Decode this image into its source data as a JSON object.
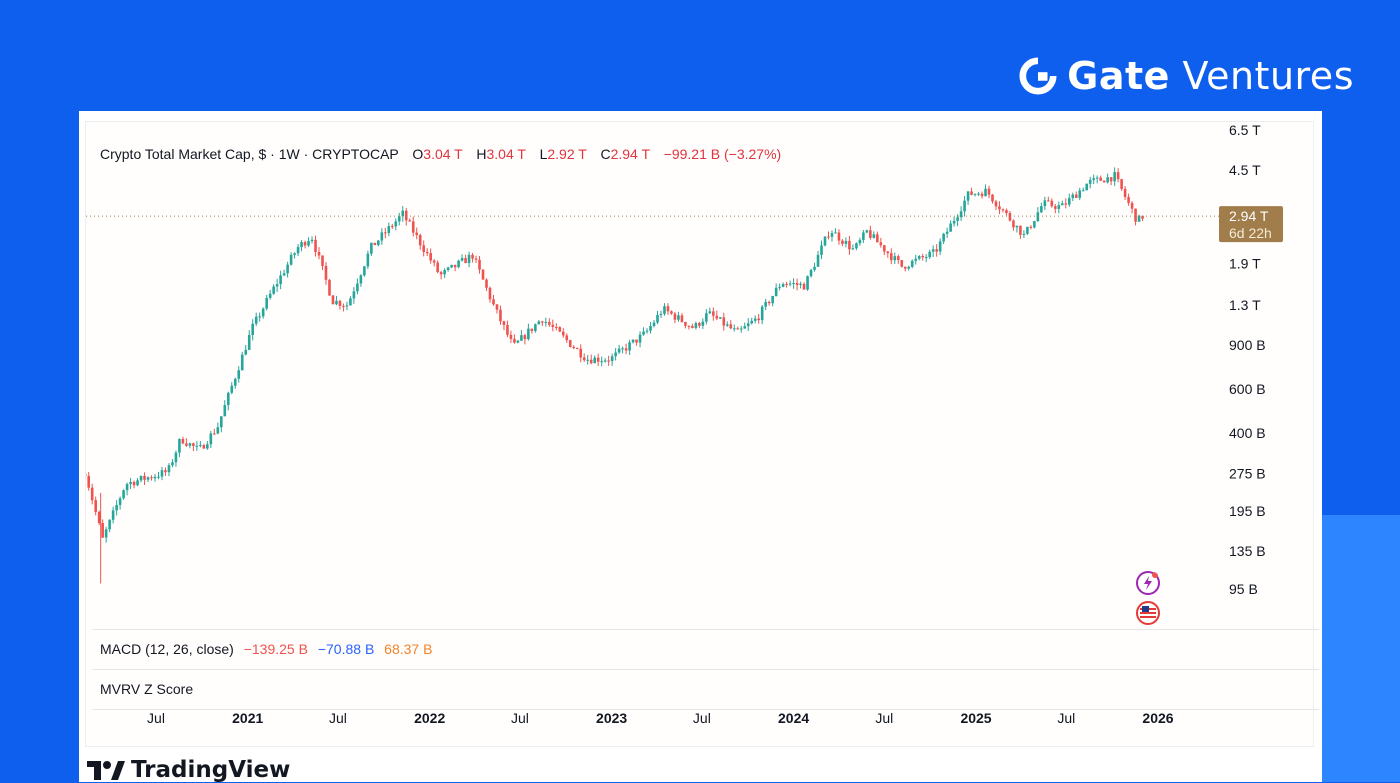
{
  "brand": {
    "bold": "Gate",
    "light": "Ventures",
    "icon": "gate-logo-icon"
  },
  "legend": {
    "title": "Crypto Total Market Cap, $ · 1W · CRYPTOCAP",
    "o_label": "O",
    "o_val": "3.04 T",
    "h_label": "H",
    "h_val": "3.04 T",
    "l_label": "L",
    "l_val": "2.92 T",
    "c_label": "C",
    "c_val": "2.94 T",
    "change": "−99.21 B (−3.27%)"
  },
  "macd": {
    "label": "MACD (12, 26, close)",
    "v1": "−139.25 B",
    "v2": "−70.88 B",
    "v3": "68.37 B"
  },
  "mvrv": {
    "label": "MVRV Z Score"
  },
  "footer": {
    "logo_text": "TradingView",
    "icon": "tradingview-logo-icon"
  },
  "colors": {
    "up": "#26a69a",
    "down": "#ef5350",
    "background": "#0f5fef",
    "price_tag": "#a17d4b"
  },
  "chart_data": {
    "type": "candlestick",
    "title": "Crypto Total Market Cap, $ · 1W · CRYPTOCAP",
    "y_scale": "log",
    "y_ticks": [
      {
        "label": "6.5 T",
        "value": 6500000000000.0
      },
      {
        "label": "4.5 T",
        "value": 4500000000000.0
      },
      {
        "label": "1.9 T",
        "value": 1900000000000.0
      },
      {
        "label": "1.3 T",
        "value": 1300000000000.0
      },
      {
        "label": "900 B",
        "value": 900000000000.0
      },
      {
        "label": "600 B",
        "value": 600000000000.0
      },
      {
        "label": "400 B",
        "value": 400000000000.0
      },
      {
        "label": "275 B",
        "value": 275000000000.0
      },
      {
        "label": "195 B",
        "value": 195000000000.0
      },
      {
        "label": "135 B",
        "value": 135000000000.0
      },
      {
        "label": "95 B",
        "value": 95000000000.0
      }
    ],
    "x_ticks": [
      {
        "label": "Jul",
        "date": "2020-07-01",
        "bold": false
      },
      {
        "label": "2021",
        "date": "2021-01-01",
        "bold": true
      },
      {
        "label": "Jul",
        "date": "2021-07-01",
        "bold": false
      },
      {
        "label": "2022",
        "date": "2022-01-01",
        "bold": true
      },
      {
        "label": "Jul",
        "date": "2022-07-01",
        "bold": false
      },
      {
        "label": "2023",
        "date": "2023-01-01",
        "bold": true
      },
      {
        "label": "Jul",
        "date": "2023-07-01",
        "bold": false
      },
      {
        "label": "2024",
        "date": "2024-01-01",
        "bold": true
      },
      {
        "label": "Jul",
        "date": "2024-07-01",
        "bold": false
      },
      {
        "label": "2025",
        "date": "2025-01-01",
        "bold": true
      },
      {
        "label": "Jul",
        "date": "2025-07-01",
        "bold": false
      },
      {
        "label": "2026",
        "date": "2026-01-01",
        "bold": true
      }
    ],
    "last_price": {
      "label": "2.94 T",
      "countdown": "6d 22h",
      "value": 2940000000000.0
    },
    "anchors": [
      {
        "date": "2020-02-10",
        "close": 280000000000.0
      },
      {
        "date": "2020-03-16",
        "close": 150000000000.0
      },
      {
        "date": "2020-05-01",
        "close": 250000000000.0
      },
      {
        "date": "2020-07-25",
        "close": 280000000000.0
      },
      {
        "date": "2020-08-20",
        "close": 380000000000.0
      },
      {
        "date": "2020-09-25",
        "close": 340000000000.0
      },
      {
        "date": "2020-11-01",
        "close": 420000000000.0
      },
      {
        "date": "2021-01-10",
        "close": 1050000000000.0
      },
      {
        "date": "2021-02-21",
        "close": 1500000000000.0
      },
      {
        "date": "2021-04-11",
        "close": 2200000000000.0
      },
      {
        "date": "2021-05-09",
        "close": 2450000000000.0
      },
      {
        "date": "2021-06-20",
        "close": 1350000000000.0
      },
      {
        "date": "2021-07-20",
        "close": 1300000000000.0
      },
      {
        "date": "2021-09-05",
        "close": 2200000000000.0
      },
      {
        "date": "2021-11-08",
        "close": 3000000000000.0
      },
      {
        "date": "2022-01-22",
        "close": 1700000000000.0
      },
      {
        "date": "2022-03-28",
        "close": 2050000000000.0
      },
      {
        "date": "2022-05-12",
        "close": 1250000000000.0
      },
      {
        "date": "2022-06-18",
        "close": 880000000000.0
      },
      {
        "date": "2022-08-14",
        "close": 1150000000000.0
      },
      {
        "date": "2022-11-13",
        "close": 790000000000.0
      },
      {
        "date": "2022-12-30",
        "close": 790000000000.0
      },
      {
        "date": "2023-03-10",
        "close": 1000000000000.0
      },
      {
        "date": "2023-04-14",
        "close": 1250000000000.0
      },
      {
        "date": "2023-06-15",
        "close": 1050000000000.0
      },
      {
        "date": "2023-07-14",
        "close": 1200000000000.0
      },
      {
        "date": "2023-09-11",
        "close": 1000000000000.0
      },
      {
        "date": "2023-10-20",
        "close": 1150000000000.0
      },
      {
        "date": "2023-12-08",
        "close": 1600000000000.0
      },
      {
        "date": "2024-01-23",
        "close": 1550000000000.0
      },
      {
        "date": "2024-03-14",
        "close": 2600000000000.0
      },
      {
        "date": "2024-05-01",
        "close": 2150000000000.0
      },
      {
        "date": "2024-05-27",
        "close": 2550000000000.0
      },
      {
        "date": "2024-08-05",
        "close": 1850000000000.0
      },
      {
        "date": "2024-10-10",
        "close": 2100000000000.0
      },
      {
        "date": "2024-12-17",
        "close": 3600000000000.0
      },
      {
        "date": "2025-01-22",
        "close": 3700000000000.0
      },
      {
        "date": "2025-04-08",
        "close": 2450000000000.0
      },
      {
        "date": "2025-05-15",
        "close": 3300000000000.0
      },
      {
        "date": "2025-06-22",
        "close": 3200000000000.0
      },
      {
        "date": "2025-08-14",
        "close": 4000000000000.0
      },
      {
        "date": "2025-10-06",
        "close": 4250000000000.0
      },
      {
        "date": "2025-11-21",
        "close": 2800000000000.0
      },
      {
        "date": "2025-12-01",
        "close": 2940000000000.0
      }
    ]
  }
}
